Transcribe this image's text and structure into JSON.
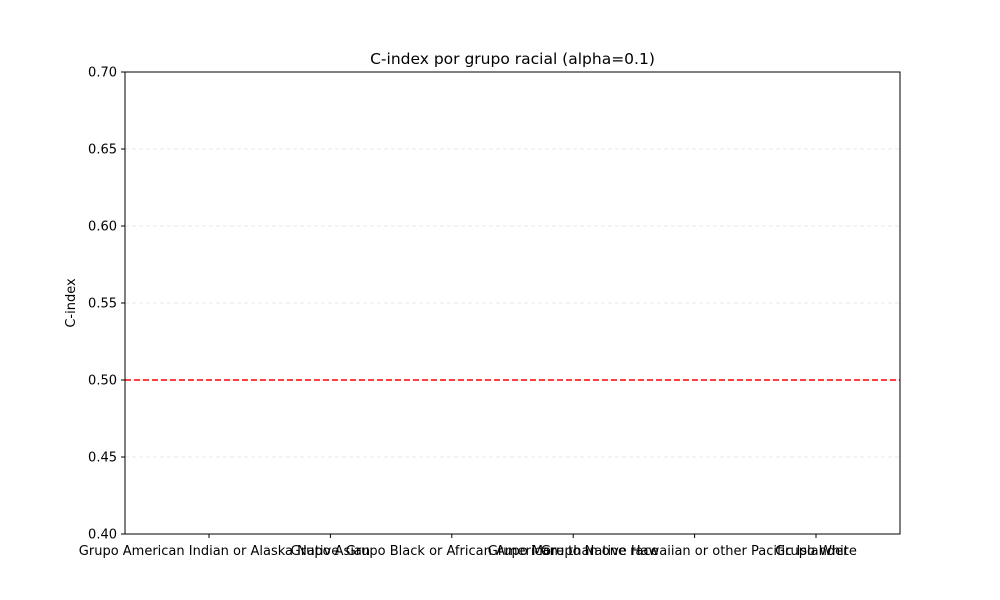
{
  "chart_data": {
    "type": "bar",
    "title": "C-index por grupo racial (alpha=0.1)",
    "xlabel": "",
    "ylabel": "C-index",
    "ylim": [
      0.4,
      0.7
    ],
    "yticks": [
      "0.40",
      "0.45",
      "0.50",
      "0.55",
      "0.60",
      "0.65",
      "0.70"
    ],
    "categories": [
      "Grupo American Indian or Alaska Native",
      "Grupo Asian",
      "Grupo Black or African American",
      "Grupo More than one race",
      "Grupo Native Hawaiian or other Pacific Islander",
      "Grupo White"
    ],
    "values": [
      null,
      null,
      null,
      null,
      null,
      null
    ],
    "reference_line": {
      "y": 0.5,
      "style": "dashed",
      "color": "#ff0000"
    },
    "grid": "y-dashed-light",
    "legend": "none"
  }
}
